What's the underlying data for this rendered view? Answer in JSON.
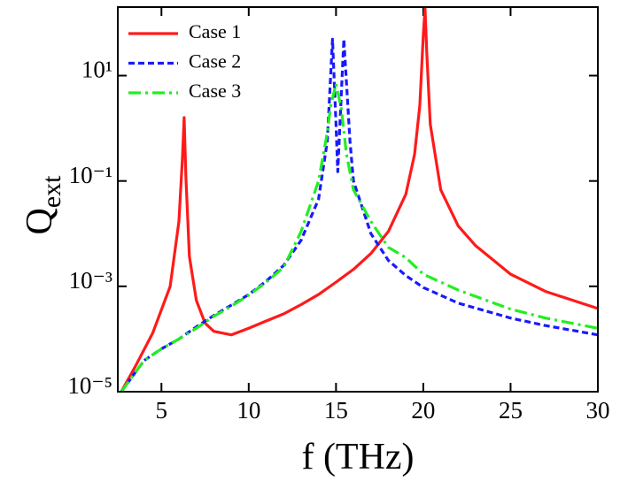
{
  "chart_data": {
    "type": "line",
    "xlabel": "f (THz)",
    "ylabel": {
      "text": "Q",
      "sub": "ext"
    },
    "xlim": [
      2.5,
      30
    ],
    "xticks": [
      5,
      10,
      15,
      20,
      25,
      30
    ],
    "ylim": [
      1e-05,
      200
    ],
    "yscale": "log",
    "yticks": [
      {
        "value": 1e-05,
        "label": "10⁻⁵"
      },
      {
        "value": 0.001,
        "label": "10⁻³"
      },
      {
        "value": 0.1,
        "label": "10⁻¹"
      },
      {
        "value": 10,
        "label": "10¹"
      }
    ],
    "legend": "upper left",
    "series": [
      {
        "name": "Case 1",
        "color": "#ff1a1a",
        "linestyle": "solid",
        "x": [
          2.7,
          3.5,
          4.5,
          5.5,
          6.0,
          6.2,
          6.3,
          6.4,
          6.6,
          7,
          7.5,
          8,
          9,
          10,
          11,
          12,
          13,
          14,
          15,
          16,
          17,
          18,
          19,
          19.5,
          19.8,
          20.0,
          20.1,
          20.2,
          20.4,
          21,
          22,
          23,
          25,
          27,
          30
        ],
        "values": [
          1e-05,
          3e-05,
          0.00013,
          0.001,
          0.017,
          0.26,
          1.6,
          0.12,
          0.0037,
          0.00054,
          0.0002,
          0.00014,
          0.00012,
          0.00016,
          0.00022,
          0.0003,
          0.00045,
          0.0007,
          0.0012,
          0.0021,
          0.0042,
          0.011,
          0.056,
          0.32,
          2.7,
          59,
          190,
          27,
          1.2,
          0.068,
          0.014,
          0.0059,
          0.0017,
          0.0008,
          0.00038
        ]
      },
      {
        "name": "Case 2",
        "color": "#1a1aff",
        "linestyle": "dashed",
        "x": [
          2.7,
          4,
          5,
          6,
          7,
          8,
          9,
          10,
          11,
          12,
          13,
          14,
          14.5,
          14.8,
          15.0,
          15.1,
          15.2,
          15.45,
          15.8,
          16,
          17,
          18,
          19,
          20,
          22,
          25,
          27,
          30
        ],
        "values": [
          1e-05,
          3.9e-05,
          6.5e-05,
          0.0001,
          0.00017,
          0.00028,
          0.00044,
          0.0007,
          0.00125,
          0.0025,
          0.0075,
          0.045,
          0.57,
          49,
          1.2,
          0.15,
          0.8,
          49,
          0.57,
          0.1,
          0.01,
          0.0031,
          0.0016,
          0.00095,
          0.00048,
          0.00025,
          0.00018,
          0.00012
        ]
      },
      {
        "name": "Case 3",
        "color": "#22ee22",
        "linestyle": "dashdot",
        "x": [
          2.7,
          4,
          5,
          6,
          7,
          8,
          9,
          10,
          11,
          12,
          13,
          14,
          14.5,
          14.7,
          15.0,
          15.3,
          15.6,
          16,
          17,
          18,
          19,
          20,
          22,
          25,
          27,
          30
        ],
        "values": [
          1e-05,
          3.9e-05,
          6.5e-05,
          0.0001,
          0.00016,
          0.00027,
          0.00042,
          0.00068,
          0.0012,
          0.0023,
          0.011,
          0.1,
          0.83,
          2.7,
          7,
          2.4,
          0.32,
          0.068,
          0.017,
          0.0055,
          0.0035,
          0.0017,
          0.00085,
          0.00037,
          0.00025,
          0.00016
        ]
      }
    ]
  }
}
